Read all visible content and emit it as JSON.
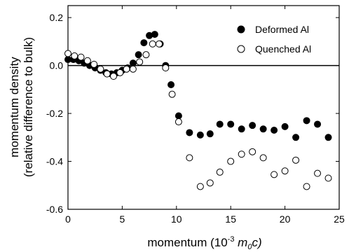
{
  "chart_data": {
    "type": "scatter",
    "xlabel": {
      "main": "momentum (10",
      "sup": "-3",
      "unit_pre": " m",
      "unit_sub": "0",
      "unit_post": "c)"
    },
    "ylabel_line1": "momentum density",
    "ylabel_line2": "(relative difference to bulk)",
    "xlim": [
      0,
      25
    ],
    "ylim": [
      -0.6,
      0.25
    ],
    "x_ticks": [
      0,
      5,
      10,
      15,
      20,
      25
    ],
    "x_tick_labels": [
      "0",
      "5",
      "10",
      "15",
      "20",
      "25"
    ],
    "y_ticks": [
      -0.6,
      -0.4,
      -0.2,
      0.0,
      0.2
    ],
    "y_tick_labels": [
      "-0.6",
      "-0.4",
      "-0.2",
      "0.0",
      "0.2"
    ],
    "reference_line_y": 0,
    "legend_position": "top-right",
    "series": [
      {
        "name": "Deformed Al",
        "marker": "filled-circle",
        "color": "#000000",
        "x": [
          0.0,
          0.5,
          1.0,
          1.5,
          2.0,
          2.5,
          3.0,
          3.5,
          4.0,
          4.5,
          5.0,
          5.5,
          6.0,
          6.5,
          7.0,
          7.5,
          8.0,
          8.5,
          9.0,
          9.5,
          10.2,
          11.2,
          12.2,
          13.1,
          14.0,
          15.0,
          16.0,
          17.0,
          18.0,
          19.0,
          20.0,
          21.0,
          22.0,
          23.0,
          24.0
        ],
        "y": [
          0.025,
          0.025,
          0.02,
          0.01,
          0.0,
          -0.01,
          -0.02,
          -0.03,
          -0.035,
          -0.03,
          -0.02,
          -0.01,
          0.01,
          0.045,
          0.095,
          0.125,
          0.13,
          0.09,
          0.0,
          -0.08,
          -0.21,
          -0.28,
          -0.29,
          -0.285,
          -0.245,
          -0.245,
          -0.265,
          -0.25,
          -0.265,
          -0.27,
          -0.255,
          -0.3,
          -0.23,
          -0.245,
          -0.3
        ]
      },
      {
        "name": "Quenched Al",
        "marker": "open-circle",
        "color": "#000000",
        "x": [
          0.0,
          0.6,
          1.2,
          1.8,
          2.4,
          3.0,
          3.6,
          4.2,
          4.8,
          5.4,
          6.0,
          6.6,
          7.2,
          7.8,
          8.4,
          9.0,
          9.6,
          10.2,
          11.2,
          12.2,
          13.1,
          14.0,
          15.0,
          16.0,
          17.0,
          18.0,
          19.0,
          20.0,
          21.0,
          22.0,
          23.0,
          24.0
        ],
        "y": [
          0.05,
          0.04,
          0.035,
          0.02,
          0.005,
          -0.015,
          -0.035,
          -0.045,
          -0.03,
          -0.015,
          -0.015,
          0.015,
          0.045,
          0.09,
          0.09,
          -0.01,
          -0.12,
          -0.235,
          -0.385,
          -0.505,
          -0.49,
          -0.445,
          -0.4,
          -0.37,
          -0.36,
          -0.385,
          -0.455,
          -0.44,
          -0.395,
          -0.505,
          -0.45,
          -0.47
        ]
      }
    ]
  }
}
